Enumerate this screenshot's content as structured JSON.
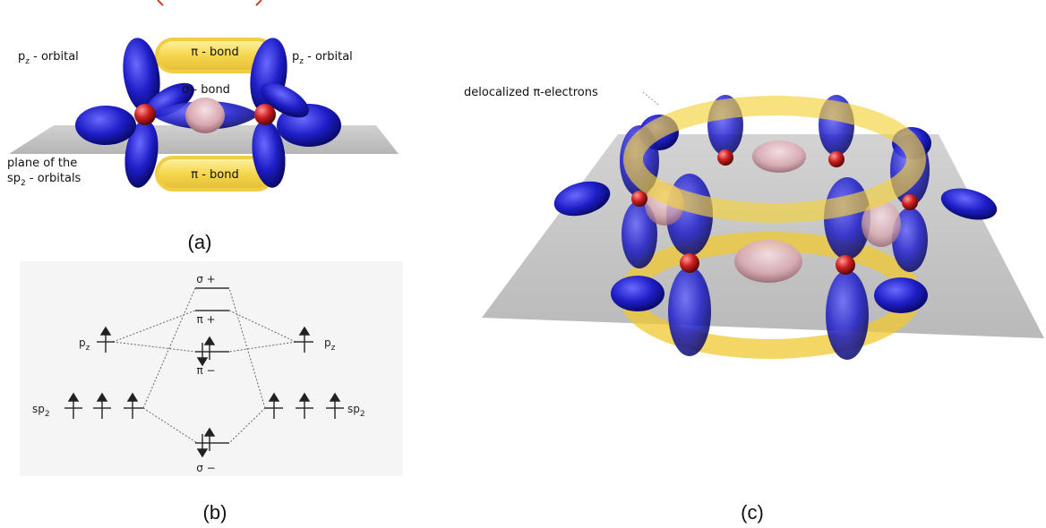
{
  "panel_a": {
    "pz_left": {
      "main": "p",
      "sub": "z",
      "rest": " - orbital"
    },
    "pz_right": {
      "main": "p",
      "sub": "z",
      "rest": " - orbital"
    },
    "pi_bond_top": "π - bond",
    "pi_bond_bottom": "π - bond",
    "sigma_bond": "σ - bond",
    "plane_line1": "plane of the",
    "plane_line2": {
      "main": "sp",
      "sub": "2",
      "rest": " - orbitals"
    },
    "caption": "(a)"
  },
  "panel_b": {
    "pz_left": {
      "main": "p",
      "sub": "z"
    },
    "pz_right": {
      "main": "p",
      "sub": "z"
    },
    "sp2_left": {
      "main": "sp",
      "sub": "2"
    },
    "sp2_right": {
      "main": "sp",
      "sub": "2"
    },
    "sigma_plus": "σ +",
    "pi_plus": "π +",
    "pi_minus": "π −",
    "sigma_minus": "σ −",
    "caption": "(b)"
  },
  "panel_c": {
    "delocalized_label": "delocalized π-electrons",
    "caption": "(c)"
  },
  "colors": {
    "orbital_blue": "#1e1ec8",
    "bond_yellow": "#f5d23a",
    "sigma_pink": "#d8a8b0",
    "atom_red": "#d02020",
    "plane_gray": "#b4b4b4"
  }
}
